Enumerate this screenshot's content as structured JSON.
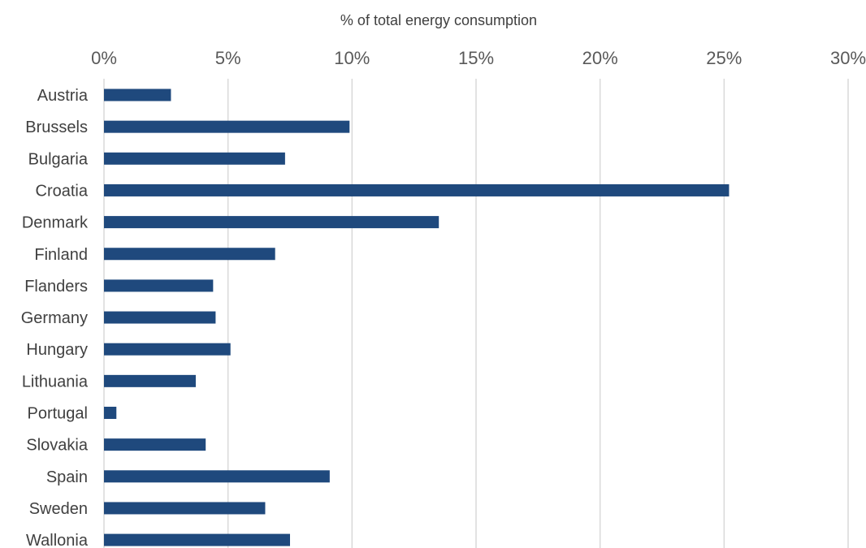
{
  "chart_data": {
    "type": "bar",
    "orientation": "horizontal",
    "title": "",
    "xlabel": "% of total energy consumption",
    "ylabel": "",
    "x_axis_position": "top",
    "xlim": [
      0,
      30
    ],
    "xticks": [
      0,
      5,
      10,
      15,
      20,
      25,
      30
    ],
    "xtick_labels": [
      "0%",
      "5%",
      "10%",
      "15%",
      "20%",
      "25%",
      "30%"
    ],
    "grid": true,
    "legend": "none",
    "bar_color": "#1f497d",
    "grid_color": "#d9d9d9",
    "categories": [
      "Austria",
      "Brussels",
      "Bulgaria",
      "Croatia",
      "Denmark",
      "Finland",
      "Flanders",
      "Germany",
      "Hungary",
      "Lithuania",
      "Portugal",
      "Slovakia",
      "Spain",
      "Sweden",
      "Wallonia"
    ],
    "values": [
      2.7,
      9.9,
      7.3,
      25.2,
      13.5,
      6.9,
      4.4,
      4.5,
      5.1,
      3.7,
      0.5,
      4.1,
      9.1,
      6.5,
      7.5
    ]
  }
}
